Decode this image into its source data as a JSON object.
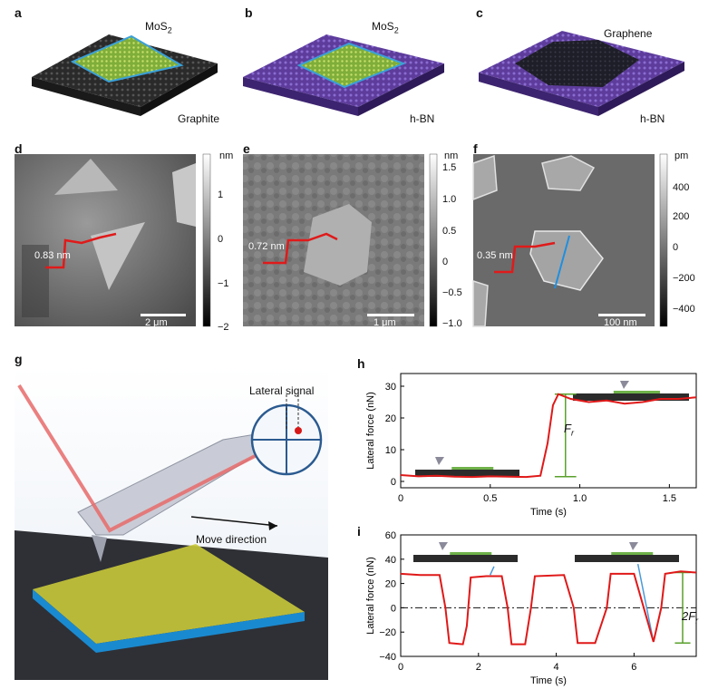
{
  "panels": {
    "a": {
      "letter": "a",
      "top_label": "MoS",
      "top_sub": "2",
      "bottom_label": "Graphite"
    },
    "b": {
      "letter": "b",
      "top_label": "MoS",
      "top_sub": "2",
      "bottom_label": "h-BN"
    },
    "c": {
      "letter": "c",
      "top_label": "Graphene",
      "bottom_label": "h-BN"
    },
    "d": {
      "letter": "d",
      "unit": "nm",
      "ticks": [
        "1",
        "0",
        "−1",
        "−2"
      ],
      "step": "0.83 nm",
      "scale": "2 μm"
    },
    "e": {
      "letter": "e",
      "unit": "nm",
      "ticks": [
        "1.5",
        "1.0",
        "0.5",
        "0",
        "−0.5",
        "−1.0"
      ],
      "step": "0.72 nm",
      "scale": "1 μm"
    },
    "f": {
      "letter": "f",
      "unit": "pm",
      "ticks": [
        "400",
        "200",
        "0",
        "−200",
        "−400"
      ],
      "step": "0.35 nm",
      "scale": "100 nm"
    },
    "g": {
      "letter": "g",
      "lateral_signal": "Lateral signal",
      "move_direction": "Move direction"
    },
    "h": {
      "letter": "h",
      "fr_label": "F",
      "fr_sub": "r"
    },
    "i": {
      "letter": "i",
      "fr_label": "2F",
      "fr_sub": "r"
    }
  },
  "chart_data": [
    {
      "id": "h",
      "type": "line",
      "xlabel": "Time (s)",
      "ylabel": "Lateral force (nN)",
      "xlim": [
        0,
        1.65
      ],
      "ylim": [
        -2,
        34
      ],
      "xticks": [
        "0",
        "0.5",
        "1.0",
        "1.5"
      ],
      "xtick_values": [
        0,
        0.5,
        1.0,
        1.5
      ],
      "yticks": [
        "0",
        "10",
        "20",
        "30"
      ],
      "ytick_values": [
        0,
        10,
        20,
        30
      ],
      "series": [
        {
          "x": [
            0,
            0.1,
            0.2,
            0.3,
            0.4,
            0.5,
            0.6,
            0.7,
            0.78,
            0.82,
            0.85,
            0.88,
            0.95,
            1.05,
            1.15,
            1.25,
            1.35,
            1.45,
            1.55,
            1.65
          ],
          "y": [
            2,
            1.6,
            1.8,
            1.5,
            1.4,
            1.6,
            1.5,
            1.4,
            1.8,
            12,
            24,
            27.5,
            26,
            25,
            25.5,
            24.5,
            25,
            26,
            26,
            26.5
          ]
        }
      ]
    },
    {
      "id": "i",
      "type": "line",
      "xlabel": "Time (s)",
      "ylabel": "Lateral force (nN)",
      "xlim": [
        0,
        7.6
      ],
      "ylim": [
        -40,
        60
      ],
      "xticks": [
        "0",
        "2",
        "4",
        "6"
      ],
      "xtick_values": [
        0,
        2,
        4,
        6
      ],
      "yticks": [
        "−40",
        "−20",
        "0",
        "20",
        "40",
        "60"
      ],
      "ytick_values": [
        -40,
        -20,
        0,
        20,
        40,
        60
      ],
      "series": [
        {
          "x": [
            0,
            0.5,
            1.0,
            1.15,
            1.25,
            1.6,
            1.7,
            1.8,
            2.2,
            2.6,
            2.75,
            2.85,
            3.2,
            3.35,
            3.45,
            4.2,
            4.45,
            4.55,
            5.0,
            5.3,
            5.4,
            5.5,
            6.0,
            6.5,
            6.7,
            6.8,
            7.2,
            7.6
          ],
          "y": [
            28,
            27,
            27,
            0,
            -29,
            -30,
            -15,
            25,
            26,
            26,
            0,
            -30,
            -30,
            0,
            26,
            27,
            0,
            -29,
            -29,
            0,
            28,
            28,
            28,
            -28,
            0,
            28,
            30,
            29
          ]
        }
      ]
    }
  ]
}
